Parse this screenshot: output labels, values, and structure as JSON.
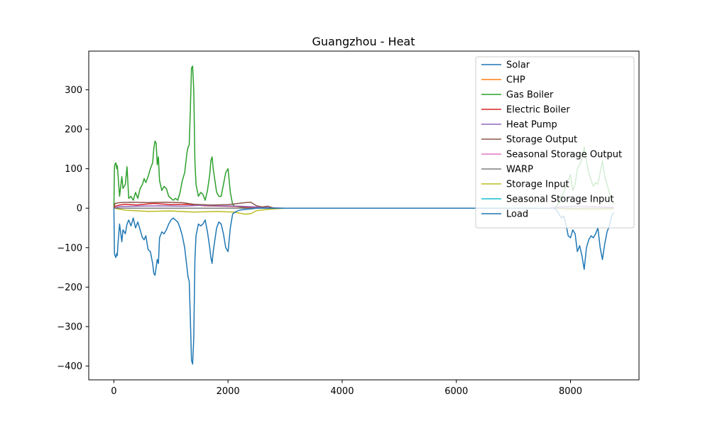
{
  "chart_data": {
    "type": "line",
    "title": "Guangzhou - Heat",
    "xlabel": "",
    "ylabel": "",
    "xlim": [
      -440,
      9200
    ],
    "ylim": [
      -435,
      398
    ],
    "x_ticks": [
      0,
      2000,
      4000,
      6000,
      8000
    ],
    "y_ticks": [
      -400,
      -300,
      -200,
      -100,
      0,
      100,
      200,
      300
    ],
    "grid": false,
    "legend_position": "top-right",
    "series": [
      {
        "name": "Solar",
        "color": "#1f77b4",
        "points": [
          [
            0,
            0
          ],
          [
            8760,
            0
          ]
        ]
      },
      {
        "name": "CHP",
        "color": "#ff7f0e",
        "points": [
          [
            0,
            0
          ],
          [
            8760,
            0
          ]
        ]
      },
      {
        "name": "Gas Boiler",
        "color": "#2ca02c",
        "points": [
          [
            0,
            0
          ],
          [
            10,
            105
          ],
          [
            20,
            112
          ],
          [
            35,
            115
          ],
          [
            50,
            100
          ],
          [
            60,
            108
          ],
          [
            70,
            90
          ],
          [
            100,
            30
          ],
          [
            140,
            80
          ],
          [
            160,
            50
          ],
          [
            200,
            60
          ],
          [
            230,
            105
          ],
          [
            260,
            25
          ],
          [
            300,
            30
          ],
          [
            340,
            20
          ],
          [
            380,
            40
          ],
          [
            420,
            25
          ],
          [
            460,
            50
          ],
          [
            500,
            60
          ],
          [
            530,
            75
          ],
          [
            560,
            65
          ],
          [
            600,
            80
          ],
          [
            640,
            100
          ],
          [
            680,
            115
          ],
          [
            700,
            150
          ],
          [
            720,
            170
          ],
          [
            740,
            165
          ],
          [
            760,
            110
          ],
          [
            780,
            130
          ],
          [
            800,
            70
          ],
          [
            840,
            45
          ],
          [
            880,
            55
          ],
          [
            920,
            50
          ],
          [
            960,
            30
          ],
          [
            1000,
            25
          ],
          [
            1040,
            20
          ],
          [
            1080,
            25
          ],
          [
            1120,
            20
          ],
          [
            1160,
            40
          ],
          [
            1200,
            70
          ],
          [
            1240,
            90
          ],
          [
            1280,
            140
          ],
          [
            1300,
            155
          ],
          [
            1320,
            160
          ],
          [
            1340,
            250
          ],
          [
            1360,
            355
          ],
          [
            1380,
            360
          ],
          [
            1400,
            300
          ],
          [
            1420,
            120
          ],
          [
            1440,
            60
          ],
          [
            1480,
            30
          ],
          [
            1520,
            40
          ],
          [
            1560,
            35
          ],
          [
            1600,
            20
          ],
          [
            1640,
            45
          ],
          [
            1680,
            85
          ],
          [
            1700,
            120
          ],
          [
            1720,
            130
          ],
          [
            1740,
            100
          ],
          [
            1760,
            80
          ],
          [
            1800,
            40
          ],
          [
            1840,
            30
          ],
          [
            1880,
            30
          ],
          [
            1920,
            60
          ],
          [
            1960,
            90
          ],
          [
            2000,
            100
          ],
          [
            2040,
            40
          ],
          [
            2080,
            10
          ],
          [
            2120,
            5
          ],
          [
            2200,
            3
          ],
          [
            2300,
            2
          ],
          [
            2400,
            1
          ],
          [
            2500,
            0
          ],
          [
            7700,
            0
          ],
          [
            7760,
            5
          ],
          [
            7800,
            15
          ],
          [
            7840,
            30
          ],
          [
            7880,
            40
          ],
          [
            7920,
            55
          ],
          [
            7960,
            70
          ],
          [
            8000,
            85
          ],
          [
            8040,
            45
          ],
          [
            8080,
            60
          ],
          [
            8120,
            100
          ],
          [
            8160,
            110
          ],
          [
            8200,
            125
          ],
          [
            8240,
            155
          ],
          [
            8280,
            120
          ],
          [
            8320,
            90
          ],
          [
            8360,
            70
          ],
          [
            8400,
            55
          ],
          [
            8440,
            65
          ],
          [
            8480,
            60
          ],
          [
            8520,
            90
          ],
          [
            8560,
            120
          ],
          [
            8600,
            80
          ],
          [
            8640,
            60
          ],
          [
            8680,
            40
          ],
          [
            8720,
            20
          ],
          [
            8760,
            10
          ]
        ]
      },
      {
        "name": "Electric Boiler",
        "color": "#d62728",
        "points": [
          [
            0,
            0
          ],
          [
            30,
            5
          ],
          [
            100,
            8
          ],
          [
            200,
            10
          ],
          [
            400,
            8
          ],
          [
            700,
            12
          ],
          [
            1000,
            9
          ],
          [
            1300,
            10
          ],
          [
            1600,
            6
          ],
          [
            1900,
            5
          ],
          [
            2200,
            4
          ],
          [
            2400,
            2
          ],
          [
            2600,
            0
          ],
          [
            8760,
            0
          ]
        ]
      },
      {
        "name": "Heat Pump",
        "color": "#9467bd",
        "points": [
          [
            0,
            0
          ],
          [
            100,
            4
          ],
          [
            400,
            5
          ],
          [
            800,
            6
          ],
          [
            1200,
            5
          ],
          [
            1500,
            7
          ],
          [
            1800,
            6
          ],
          [
            2200,
            5
          ],
          [
            2500,
            3
          ],
          [
            2800,
            1
          ],
          [
            3000,
            0
          ],
          [
            7600,
            0
          ],
          [
            7800,
            3
          ],
          [
            8100,
            5
          ],
          [
            8400,
            4
          ],
          [
            8760,
            2
          ]
        ]
      },
      {
        "name": "Storage Output",
        "color": "#8c564b",
        "points": [
          [
            0,
            0
          ],
          [
            20,
            12
          ],
          [
            100,
            14
          ],
          [
            300,
            15
          ],
          [
            600,
            14
          ],
          [
            900,
            15
          ],
          [
            1200,
            14
          ],
          [
            1400,
            10
          ],
          [
            1700,
            8
          ],
          [
            2000,
            9
          ],
          [
            2300,
            14
          ],
          [
            2400,
            15
          ],
          [
            2500,
            6
          ],
          [
            2600,
            3
          ],
          [
            2700,
            5
          ],
          [
            2800,
            0
          ],
          [
            8760,
            0
          ]
        ]
      },
      {
        "name": "Seasonal Storage Output",
        "color": "#e377c2",
        "points": [
          [
            0,
            0
          ],
          [
            8760,
            0
          ]
        ]
      },
      {
        "name": "WARP",
        "color": "#7f7f7f",
        "points": [
          [
            0,
            0
          ],
          [
            8760,
            0
          ]
        ]
      },
      {
        "name": "Storage Input",
        "color": "#bcbd22",
        "points": [
          [
            0,
            0
          ],
          [
            200,
            -5
          ],
          [
            600,
            -8
          ],
          [
            1000,
            -7
          ],
          [
            1400,
            -10
          ],
          [
            1800,
            -8
          ],
          [
            2100,
            -10
          ],
          [
            2300,
            -15
          ],
          [
            2400,
            -14
          ],
          [
            2500,
            -6
          ],
          [
            2700,
            -3
          ],
          [
            3000,
            0
          ],
          [
            7700,
            0
          ],
          [
            8000,
            -3
          ],
          [
            8400,
            -4
          ],
          [
            8760,
            -2
          ]
        ]
      },
      {
        "name": "Seasonal Storage Input",
        "color": "#17becf",
        "points": [
          [
            0,
            0
          ],
          [
            8760,
            0
          ]
        ]
      },
      {
        "name": "Load",
        "color": "#1f77b4",
        "points": [
          [
            0,
            0
          ],
          [
            10,
            -115
          ],
          [
            20,
            -120
          ],
          [
            35,
            -125
          ],
          [
            50,
            -115
          ],
          [
            60,
            -120
          ],
          [
            70,
            -95
          ],
          [
            100,
            -40
          ],
          [
            140,
            -85
          ],
          [
            160,
            -55
          ],
          [
            200,
            -65
          ],
          [
            230,
            -40
          ],
          [
            260,
            -30
          ],
          [
            300,
            -45
          ],
          [
            340,
            -25
          ],
          [
            380,
            -50
          ],
          [
            420,
            -35
          ],
          [
            460,
            -55
          ],
          [
            500,
            -75
          ],
          [
            530,
            -80
          ],
          [
            560,
            -70
          ],
          [
            600,
            -105
          ],
          [
            640,
            -110
          ],
          [
            680,
            -140
          ],
          [
            700,
            -165
          ],
          [
            720,
            -170
          ],
          [
            740,
            -150
          ],
          [
            760,
            -130
          ],
          [
            780,
            -140
          ],
          [
            800,
            -75
          ],
          [
            840,
            -60
          ],
          [
            880,
            -65
          ],
          [
            920,
            -55
          ],
          [
            960,
            -40
          ],
          [
            1000,
            -30
          ],
          [
            1040,
            -25
          ],
          [
            1080,
            -30
          ],
          [
            1120,
            -35
          ],
          [
            1160,
            -50
          ],
          [
            1200,
            -70
          ],
          [
            1240,
            -100
          ],
          [
            1280,
            -150
          ],
          [
            1300,
            -175
          ],
          [
            1320,
            -185
          ],
          [
            1340,
            -280
          ],
          [
            1360,
            -385
          ],
          [
            1380,
            -395
          ],
          [
            1400,
            -330
          ],
          [
            1420,
            -130
          ],
          [
            1440,
            -70
          ],
          [
            1480,
            -40
          ],
          [
            1520,
            -45
          ],
          [
            1560,
            -40
          ],
          [
            1600,
            -30
          ],
          [
            1640,
            -60
          ],
          [
            1680,
            -100
          ],
          [
            1700,
            -125
          ],
          [
            1720,
            -140
          ],
          [
            1740,
            -110
          ],
          [
            1760,
            -90
          ],
          [
            1800,
            -50
          ],
          [
            1840,
            -35
          ],
          [
            1880,
            -40
          ],
          [
            1920,
            -65
          ],
          [
            1960,
            -100
          ],
          [
            2000,
            -110
          ],
          [
            2040,
            -50
          ],
          [
            2080,
            -15
          ],
          [
            2120,
            -10
          ],
          [
            2200,
            -5
          ],
          [
            2300,
            -3
          ],
          [
            2400,
            -2
          ],
          [
            2500,
            0
          ],
          [
            7700,
            0
          ],
          [
            7760,
            -5
          ],
          [
            7800,
            -15
          ],
          [
            7840,
            -25
          ],
          [
            7880,
            -20
          ],
          [
            7920,
            -40
          ],
          [
            7960,
            -70
          ],
          [
            8000,
            -75
          ],
          [
            8040,
            -55
          ],
          [
            8080,
            -65
          ],
          [
            8120,
            -110
          ],
          [
            8160,
            -95
          ],
          [
            8200,
            -120
          ],
          [
            8240,
            -155
          ],
          [
            8280,
            -100
          ],
          [
            8320,
            -80
          ],
          [
            8360,
            -70
          ],
          [
            8400,
            -75
          ],
          [
            8440,
            -65
          ],
          [
            8480,
            -50
          ],
          [
            8520,
            -100
          ],
          [
            8560,
            -130
          ],
          [
            8600,
            -90
          ],
          [
            8640,
            -60
          ],
          [
            8680,
            -45
          ],
          [
            8720,
            -20
          ],
          [
            8760,
            -10
          ]
        ]
      }
    ]
  }
}
